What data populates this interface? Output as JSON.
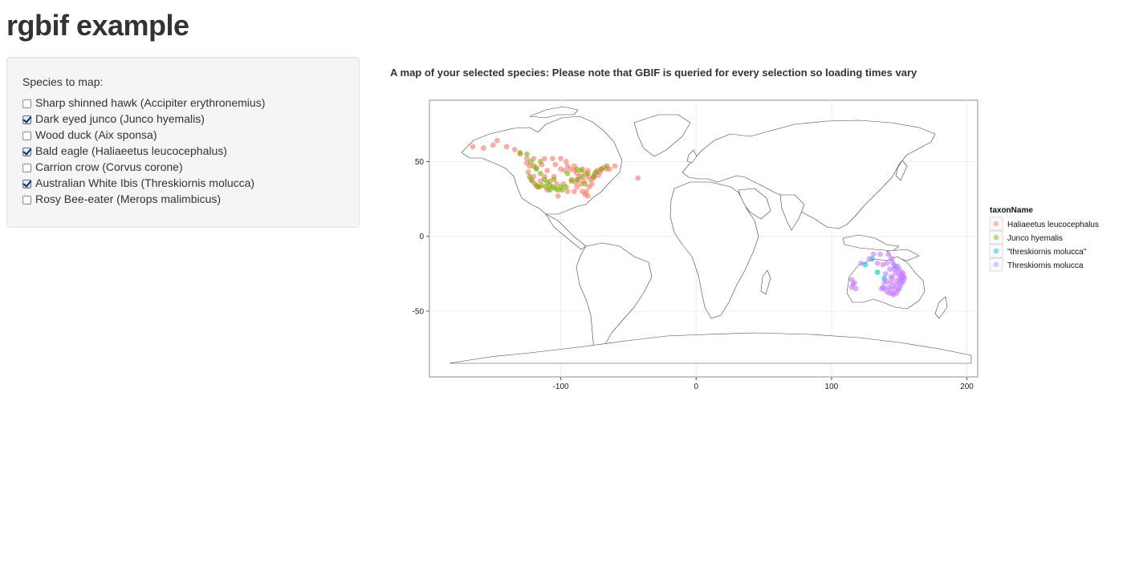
{
  "app": {
    "title": "rgbif example"
  },
  "sidebar": {
    "label": "Species to map:",
    "species": [
      {
        "label": "Sharp shinned hawk (Accipiter erythronemius)",
        "checked": false
      },
      {
        "label": "Dark eyed junco (Junco hyemalis)",
        "checked": true
      },
      {
        "label": "Wood duck (Aix sponsa)",
        "checked": false
      },
      {
        "label": "Bald eagle (Haliaeetus leucocephalus)",
        "checked": true
      },
      {
        "label": "Carrion crow (Corvus corone)",
        "checked": false
      },
      {
        "label": "Australian White Ibis (Threskiornis molucca)",
        "checked": true
      },
      {
        "label": "Rosy Bee-eater (Merops malimbicus)",
        "checked": false
      }
    ]
  },
  "main": {
    "heading": "A map of your selected species: Please note that GBIF is queried for every selection so loading times vary"
  },
  "chart_data": {
    "type": "scatter",
    "title": "",
    "xlabel": "",
    "ylabel": "",
    "xlim": [
      -197,
      208
    ],
    "ylim": [
      -94,
      91
    ],
    "x_ticks": [
      -100,
      0,
      100,
      200
    ],
    "y_ticks": [
      -50,
      0,
      50
    ],
    "x_tick_labels": [
      "-100",
      "0",
      "100",
      "200"
    ],
    "y_tick_labels": [
      "-50",
      "0",
      "50"
    ],
    "grid": true,
    "legend_title": "taxonName",
    "legend_position": "right",
    "series": [
      {
        "name": "Haliaeetus leucocephalus",
        "color": "#f8766d",
        "points": [
          [
            -165,
            60
          ],
          [
            -157,
            59
          ],
          [
            -150,
            61
          ],
          [
            -147,
            64
          ],
          [
            -140,
            60
          ],
          [
            -134,
            58
          ],
          [
            -130,
            55
          ],
          [
            -125,
            49
          ],
          [
            -123,
            47
          ],
          [
            -124,
            43
          ],
          [
            -122,
            38
          ],
          [
            -119,
            35
          ],
          [
            -117,
            33
          ],
          [
            -112,
            40
          ],
          [
            -110,
            44
          ],
          [
            -105,
            40
          ],
          [
            -100,
            45
          ],
          [
            -97,
            44
          ],
          [
            -95,
            47
          ],
          [
            -93,
            45
          ],
          [
            -90,
            44
          ],
          [
            -88,
            42
          ],
          [
            -86,
            40
          ],
          [
            -84,
            45
          ],
          [
            -82,
            42
          ],
          [
            -80,
            40
          ],
          [
            -78,
            38
          ],
          [
            -76,
            39
          ],
          [
            -75,
            42
          ],
          [
            -73,
            44
          ],
          [
            -71,
            43
          ],
          [
            -70,
            45
          ],
          [
            -68,
            46
          ],
          [
            -66,
            45
          ],
          [
            -85,
            35
          ],
          [
            -88,
            33
          ],
          [
            -90,
            30
          ],
          [
            -95,
            30
          ],
          [
            -82,
            28
          ],
          [
            -81,
            30
          ],
          [
            -80,
            27
          ],
          [
            -84,
            30
          ],
          [
            -98,
            35
          ],
          [
            -103,
            35
          ],
          [
            -108,
            37
          ],
          [
            -115,
            37
          ],
          [
            -120,
            40
          ],
          [
            -118,
            46
          ],
          [
            -114,
            48
          ],
          [
            -104,
            48
          ],
          [
            -92,
            38
          ],
          [
            -89,
            36
          ],
          [
            -77,
            35
          ],
          [
            -79,
            33
          ],
          [
            -87,
            38
          ],
          [
            -83,
            37
          ],
          [
            -75,
            40
          ],
          [
            -72,
            41
          ],
          [
            -106,
            52
          ],
          [
            -100,
            52
          ],
          [
            -96,
            50
          ],
          [
            -112,
            52
          ],
          [
            -120,
            52
          ],
          [
            -125,
            52
          ],
          [
            -90,
            47
          ],
          [
            -80,
            44
          ],
          [
            -102,
            27
          ],
          [
            -110,
            31
          ],
          [
            -43,
            39
          ],
          [
            -60,
            47
          ],
          [
            -64,
            45
          ]
        ]
      },
      {
        "name": "Junco hyemalis",
        "color": "#7cae00",
        "points": [
          [
            -122,
            50
          ],
          [
            -120,
            47
          ],
          [
            -118,
            45
          ],
          [
            -115,
            42
          ],
          [
            -112,
            38
          ],
          [
            -110,
            36
          ],
          [
            -108,
            34
          ],
          [
            -106,
            33
          ],
          [
            -104,
            32
          ],
          [
            -118,
            34
          ],
          [
            -121,
            37
          ],
          [
            -123,
            40
          ],
          [
            -100,
            33
          ],
          [
            -96,
            33
          ],
          [
            -92,
            37
          ],
          [
            -88,
            38
          ],
          [
            -84,
            40
          ],
          [
            -80,
            42
          ],
          [
            -76,
            40
          ],
          [
            -74,
            43
          ],
          [
            -70,
            45
          ],
          [
            -85,
            44
          ],
          [
            -95,
            42
          ],
          [
            -105,
            38
          ],
          [
            -111,
            33
          ],
          [
            -114,
            34
          ],
          [
            -116,
            33
          ],
          [
            -108,
            31
          ],
          [
            -102,
            31
          ],
          [
            -99,
            31
          ],
          [
            -130,
            56
          ],
          [
            -125,
            55
          ],
          [
            -115,
            50
          ],
          [
            -88,
            45
          ],
          [
            -66,
            47
          ],
          [
            -82,
            35
          ]
        ]
      },
      {
        "name": "\"threskiornis molucca\"",
        "color": "#00bfc4",
        "points": [
          [
            125,
            -19
          ],
          [
            134,
            -24
          ],
          [
            139,
            -28
          ],
          [
            130,
            -15
          ],
          [
            147,
            -20
          ]
        ]
      },
      {
        "name": "Threskiornis molucca",
        "color": "#c77cff",
        "points": [
          [
            153,
            -27
          ],
          [
            152,
            -28
          ],
          [
            151,
            -30
          ],
          [
            151,
            -33
          ],
          [
            150,
            -35
          ],
          [
            149,
            -36
          ],
          [
            148,
            -38
          ],
          [
            146,
            -39
          ],
          [
            145,
            -38
          ],
          [
            143,
            -38
          ],
          [
            141,
            -37
          ],
          [
            139,
            -35
          ],
          [
            138,
            -34
          ],
          [
            137,
            -35
          ],
          [
            153,
            -25
          ],
          [
            152,
            -24
          ],
          [
            150,
            -22
          ],
          [
            149,
            -20
          ],
          [
            146,
            -19
          ],
          [
            145,
            -17
          ],
          [
            144,
            -15
          ],
          [
            142,
            -12
          ],
          [
            147,
            -25
          ],
          [
            148,
            -30
          ],
          [
            146,
            -33
          ],
          [
            144,
            -35
          ],
          [
            142,
            -34
          ],
          [
            141,
            -30
          ],
          [
            150,
            -28
          ],
          [
            151,
            -26
          ],
          [
            145,
            -28
          ],
          [
            143,
            -22
          ],
          [
            147,
            -35
          ],
          [
            149,
            -32
          ],
          [
            153,
            -30
          ],
          [
            116,
            -32
          ],
          [
            115,
            -34
          ],
          [
            118,
            -35
          ],
          [
            117,
            -31
          ],
          [
            115,
            -29
          ],
          [
            131,
            -12
          ],
          [
            136,
            -12
          ],
          [
            141,
            -18
          ],
          [
            138,
            -19
          ],
          [
            140,
            -25
          ],
          [
            144,
            -31
          ],
          [
            139,
            -31
          ],
          [
            146,
            -22
          ],
          [
            150,
            -25
          ],
          [
            152,
            -31
          ],
          [
            154,
            -28
          ],
          [
            148,
            -22
          ],
          [
            144,
            -27
          ],
          [
            134,
            -18
          ],
          [
            128,
            -15
          ],
          [
            122,
            -18
          ]
        ]
      }
    ]
  }
}
